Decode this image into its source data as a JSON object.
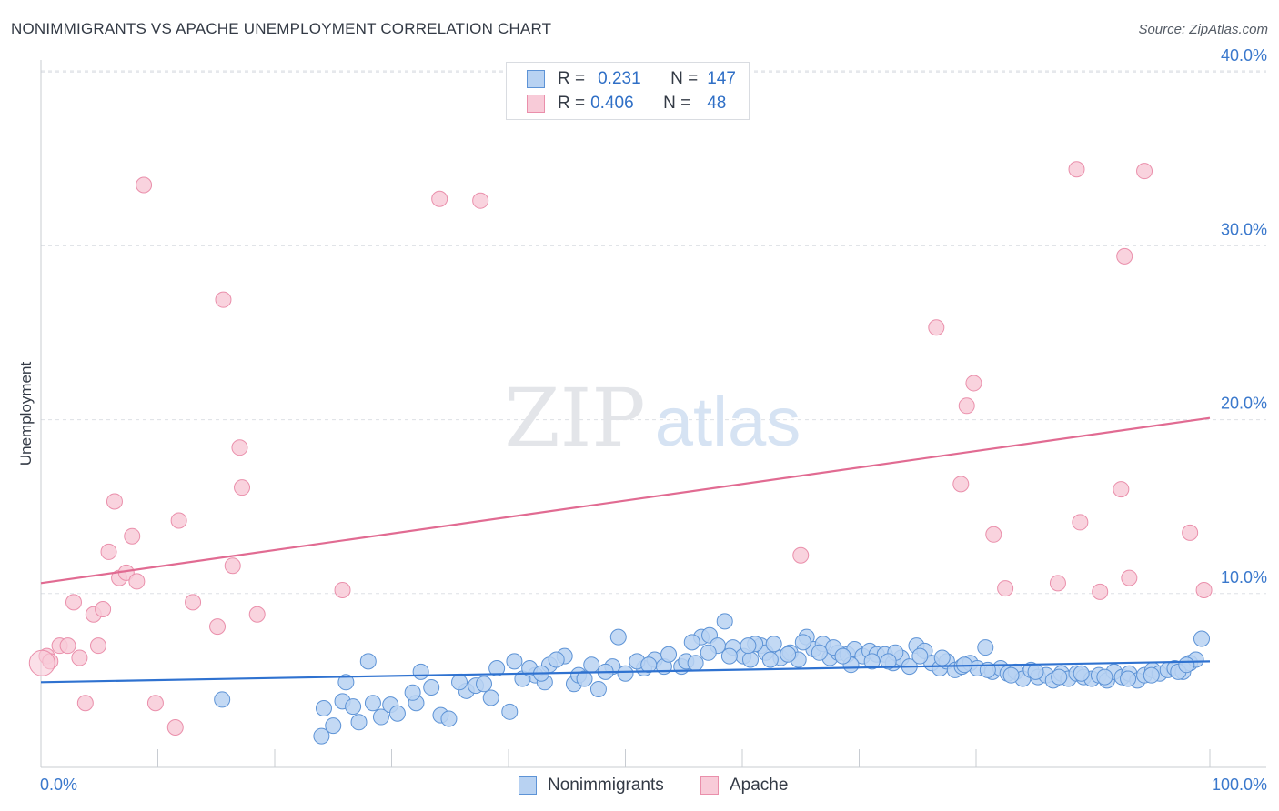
{
  "header": {
    "title": "NONIMMIGRANTS VS APACHE UNEMPLOYMENT CORRELATION CHART",
    "source": "Source: ZipAtlas.com"
  },
  "watermark": {
    "zip": "ZIP",
    "atlas": "atlas"
  },
  "colors": {
    "blue_fill": "#b8d2f2",
    "blue_stroke": "#5d93d6",
    "blue_line": "#2f72d0",
    "pink_fill": "#f8cbd8",
    "pink_stroke": "#ea8fab",
    "pink_line": "#e16b92",
    "grid": "#dde0e5",
    "axis_text": "#3a78cc"
  },
  "legend": {
    "rows": [
      {
        "r_label": "R =",
        "r_value": "0.231",
        "n_label": "N =",
        "n_value": "147"
      },
      {
        "r_label": "R =",
        "r_value": "0.406",
        "n_label": "N =",
        "n_value": "48"
      }
    ]
  },
  "bottom_legend": {
    "series1": "Nonimmigrants",
    "series2": "Apache"
  },
  "chart_data": {
    "type": "scatter",
    "title": "NONIMMIGRANTS VS APACHE UNEMPLOYMENT CORRELATION CHART",
    "xlabel": "",
    "ylabel": "Unemployment",
    "xlim": [
      0,
      100
    ],
    "ylim": [
      0,
      40
    ],
    "x_tick_labels": [
      "0.0%",
      "100.0%"
    ],
    "y_ticks": [
      10,
      20,
      30,
      40
    ],
    "y_tick_labels": [
      "10.0%",
      "20.0%",
      "30.0%",
      "40.0%"
    ],
    "legend_position": "top-center",
    "series": [
      {
        "name": "Nonimmigrants",
        "r": 0.231,
        "n": 147,
        "trend": {
          "x": [
            0,
            100
          ],
          "y": [
            4.9,
            6.1
          ]
        },
        "points": [
          [
            15.5,
            3.9
          ],
          [
            24.2,
            3.4
          ],
          [
            25.0,
            2.4
          ],
          [
            25.8,
            3.8
          ],
          [
            26.1,
            4.9
          ],
          [
            26.7,
            3.5
          ],
          [
            27.2,
            2.6
          ],
          [
            24.0,
            1.8
          ],
          [
            28.4,
            3.7
          ],
          [
            29.1,
            2.9
          ],
          [
            29.9,
            3.6
          ],
          [
            30.5,
            3.1
          ],
          [
            32.1,
            3.7
          ],
          [
            34.2,
            3.0
          ],
          [
            34.9,
            2.8
          ],
          [
            36.4,
            4.4
          ],
          [
            37.2,
            4.7
          ],
          [
            37.9,
            4.8
          ],
          [
            40.1,
            3.2
          ],
          [
            39.0,
            5.7
          ],
          [
            40.5,
            6.1
          ],
          [
            42.3,
            5.3
          ],
          [
            43.5,
            5.9
          ],
          [
            44.8,
            6.4
          ],
          [
            45.6,
            4.8
          ],
          [
            46.0,
            5.3
          ],
          [
            47.1,
            5.9
          ],
          [
            47.7,
            4.5
          ],
          [
            48.9,
            5.8
          ],
          [
            50.0,
            5.4
          ],
          [
            51.6,
            5.7
          ],
          [
            52.5,
            6.2
          ],
          [
            53.3,
            5.8
          ],
          [
            54.8,
            5.8
          ],
          [
            55.2,
            6.1
          ],
          [
            56.0,
            6.0
          ],
          [
            56.5,
            7.5
          ],
          [
            57.2,
            7.6
          ],
          [
            57.9,
            7.0
          ],
          [
            58.5,
            8.4
          ],
          [
            59.2,
            6.9
          ],
          [
            60.1,
            6.4
          ],
          [
            60.7,
            6.2
          ],
          [
            61.6,
            7.0
          ],
          [
            62.0,
            6.6
          ],
          [
            62.7,
            7.1
          ],
          [
            63.3,
            6.3
          ],
          [
            64.1,
            6.6
          ],
          [
            64.8,
            6.2
          ],
          [
            65.5,
            7.5
          ],
          [
            66.1,
            6.8
          ],
          [
            66.9,
            7.1
          ],
          [
            67.5,
            6.3
          ],
          [
            68.2,
            6.6
          ],
          [
            69.0,
            6.5
          ],
          [
            69.6,
            6.8
          ],
          [
            70.3,
            6.4
          ],
          [
            70.9,
            6.7
          ],
          [
            71.5,
            6.5
          ],
          [
            72.2,
            6.5
          ],
          [
            72.9,
            6.0
          ],
          [
            73.6,
            6.3
          ],
          [
            74.3,
            5.8
          ],
          [
            74.9,
            7.0
          ],
          [
            75.6,
            6.7
          ],
          [
            76.2,
            6.0
          ],
          [
            76.9,
            5.7
          ],
          [
            77.5,
            6.1
          ],
          [
            78.2,
            5.6
          ],
          [
            78.8,
            5.8
          ],
          [
            79.5,
            6.0
          ],
          [
            80.1,
            5.7
          ],
          [
            80.8,
            6.9
          ],
          [
            81.4,
            5.5
          ],
          [
            82.1,
            5.7
          ],
          [
            82.7,
            5.4
          ],
          [
            83.4,
            5.5
          ],
          [
            84.0,
            5.1
          ],
          [
            84.7,
            5.6
          ],
          [
            85.3,
            5.2
          ],
          [
            86.0,
            5.3
          ],
          [
            86.6,
            5.0
          ],
          [
            87.3,
            5.4
          ],
          [
            87.9,
            5.1
          ],
          [
            88.6,
            5.4
          ],
          [
            89.2,
            5.2
          ],
          [
            89.9,
            5.1
          ],
          [
            90.5,
            5.3
          ],
          [
            91.2,
            5.0
          ],
          [
            91.8,
            5.5
          ],
          [
            92.5,
            5.2
          ],
          [
            93.1,
            5.4
          ],
          [
            93.8,
            5.0
          ],
          [
            94.4,
            5.3
          ],
          [
            95.1,
            5.6
          ],
          [
            95.7,
            5.4
          ],
          [
            96.4,
            5.6
          ],
          [
            97.0,
            5.7
          ],
          [
            97.7,
            5.5
          ],
          [
            98.3,
            6.0
          ],
          [
            98.8,
            6.2
          ],
          [
            99.3,
            7.4
          ],
          [
            32.5,
            5.5
          ],
          [
            33.4,
            4.6
          ],
          [
            38.5,
            4.0
          ],
          [
            41.2,
            5.1
          ],
          [
            41.8,
            5.7
          ],
          [
            43.1,
            4.9
          ],
          [
            44.1,
            6.2
          ],
          [
            46.5,
            5.1
          ],
          [
            48.3,
            5.5
          ],
          [
            49.4,
            7.5
          ],
          [
            51.0,
            6.1
          ],
          [
            53.7,
            6.5
          ],
          [
            55.7,
            7.2
          ],
          [
            58.9,
            6.4
          ],
          [
            61.1,
            7.1
          ],
          [
            63.9,
            6.5
          ],
          [
            65.2,
            7.2
          ],
          [
            67.8,
            6.9
          ],
          [
            69.3,
            5.9
          ],
          [
            71.1,
            6.1
          ],
          [
            73.1,
            6.6
          ],
          [
            75.2,
            6.4
          ],
          [
            77.1,
            6.3
          ],
          [
            79.0,
            5.9
          ],
          [
            81.0,
            5.6
          ],
          [
            83.0,
            5.3
          ],
          [
            85.1,
            5.5
          ],
          [
            87.1,
            5.2
          ],
          [
            89.0,
            5.4
          ],
          [
            91.0,
            5.2
          ],
          [
            93.0,
            5.1
          ],
          [
            95.0,
            5.3
          ],
          [
            97.3,
            5.5
          ],
          [
            98.0,
            5.9
          ],
          [
            28.0,
            6.1
          ],
          [
            31.8,
            4.3
          ],
          [
            35.8,
            4.9
          ],
          [
            42.8,
            5.4
          ],
          [
            52.0,
            5.9
          ],
          [
            57.1,
            6.6
          ],
          [
            60.5,
            7.0
          ],
          [
            62.4,
            6.2
          ],
          [
            66.6,
            6.6
          ],
          [
            68.6,
            6.4
          ],
          [
            72.5,
            6.1
          ]
        ]
      },
      {
        "name": "Apache",
        "r": 0.406,
        "n": 48,
        "trend": {
          "x": [
            0,
            100
          ],
          "y": [
            10.6,
            20.1
          ]
        },
        "points": [
          [
            0.5,
            6.4
          ],
          [
            0.8,
            6.1
          ],
          [
            1.6,
            7.0
          ],
          [
            2.3,
            7.0
          ],
          [
            2.8,
            9.5
          ],
          [
            3.3,
            6.3
          ],
          [
            3.8,
            3.7
          ],
          [
            4.5,
            8.8
          ],
          [
            4.9,
            7.0
          ],
          [
            5.3,
            9.1
          ],
          [
            5.8,
            12.4
          ],
          [
            6.3,
            15.3
          ],
          [
            6.7,
            10.9
          ],
          [
            7.3,
            11.2
          ],
          [
            7.8,
            13.3
          ],
          [
            8.2,
            10.7
          ],
          [
            8.8,
            33.5
          ],
          [
            9.8,
            3.7
          ],
          [
            11.5,
            2.3
          ],
          [
            11.8,
            14.2
          ],
          [
            13.0,
            9.5
          ],
          [
            15.1,
            8.1
          ],
          [
            15.6,
            26.9
          ],
          [
            16.4,
            11.6
          ],
          [
            17.0,
            18.4
          ],
          [
            17.2,
            16.1
          ],
          [
            18.5,
            8.8
          ],
          [
            25.8,
            10.2
          ],
          [
            34.1,
            32.7
          ],
          [
            37.6,
            32.6
          ],
          [
            65.0,
            12.2
          ],
          [
            76.6,
            25.3
          ],
          [
            78.7,
            16.3
          ],
          [
            79.2,
            20.8
          ],
          [
            79.8,
            22.1
          ],
          [
            81.5,
            13.4
          ],
          [
            82.5,
            10.3
          ],
          [
            87.0,
            10.6
          ],
          [
            88.6,
            34.4
          ],
          [
            88.9,
            14.1
          ],
          [
            90.6,
            10.1
          ],
          [
            92.4,
            16.0
          ],
          [
            92.7,
            29.4
          ],
          [
            93.1,
            10.9
          ],
          [
            94.4,
            34.3
          ],
          [
            98.3,
            13.5
          ],
          [
            99.5,
            10.2
          ],
          [
            0.1,
            6.0
          ]
        ]
      }
    ]
  }
}
